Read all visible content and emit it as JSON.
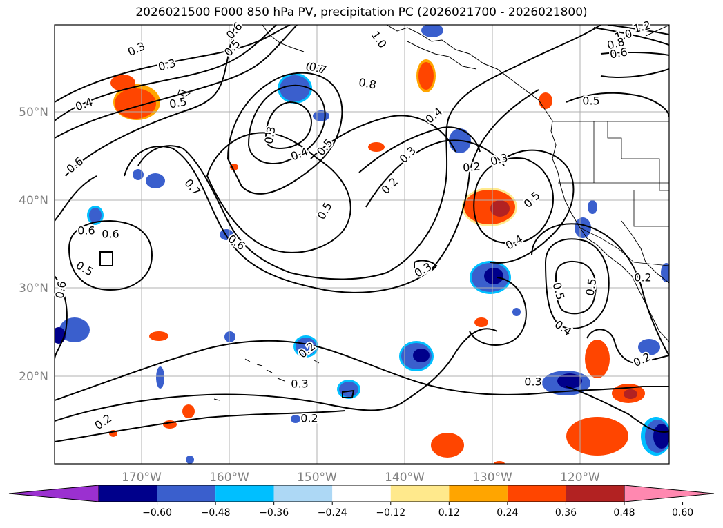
{
  "title": "2026021500 F000 850 hPa PV, precipitation PC (2026021700 - 2026021800)",
  "lat_labels": [
    "50°N",
    "40°N",
    "30°N",
    "20°N"
  ],
  "lon_labels": [
    "170°W",
    "160°W",
    "150°W",
    "140°W",
    "130°W",
    "120°W"
  ],
  "colorbar": {
    "tick_labels": [
      "−0.60",
      "−0.48",
      "−0.36",
      "−0.24",
      "−0.12",
      "0.12",
      "0.24",
      "0.36",
      "0.48",
      "0.60"
    ],
    "colors": [
      "#9b30d0",
      "#00008b",
      "#3a5fcd",
      "#00bfff",
      "#add8f5",
      "#ffffff",
      "#ffe98c",
      "#ffa500",
      "#ff4500",
      "#b22222",
      "#ff88b0"
    ]
  },
  "contour_labels": [
    "0.2",
    "0.3",
    "0.4",
    "0.5",
    "0.6",
    "0.6",
    "0.7",
    "0.3",
    "0.4",
    "0.5",
    "0.8",
    "1.0",
    "0.7",
    "0.6",
    "0.5",
    "0.3",
    "0.4",
    "0.3",
    "0.2",
    "0.2",
    "0.3",
    "0.5",
    "0.4",
    "0.5",
    "0.6",
    "0.5",
    "0.4",
    "0.5",
    "0.2",
    "0.2",
    "0.3",
    "0.2",
    "0.3",
    "0.6",
    "0.5",
    "1.0",
    "1.2",
    "0.8",
    "0.6",
    "0.5",
    "0.3",
    "0.6",
    "0.2",
    "0.7"
  ],
  "palette": {
    "neg_light": "#3a5fcd",
    "neg_dark": "#00008b",
    "neg_edge": "#00bfff",
    "pos_light": "#ff4500",
    "pos_mid": "#ffa500",
    "pos_edge": "#ffe98c",
    "pos_dark": "#b22222"
  }
}
